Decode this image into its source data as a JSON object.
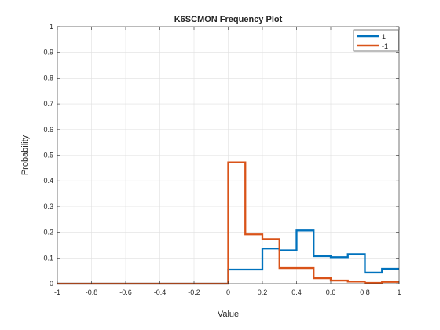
{
  "chart_data": {
    "type": "line",
    "title": "K6SCMON Frequency Plot",
    "xlabel": "Value",
    "ylabel": "Probability",
    "xlim": [
      -1,
      1
    ],
    "ylim": [
      0,
      1
    ],
    "x_ticks": [
      "-1",
      "-0.8",
      "-0.6",
      "-0.4",
      "-0.2",
      "0",
      "0.2",
      "0.4",
      "0.6",
      "0.8",
      "1"
    ],
    "y_ticks": [
      "0",
      "0.1",
      "0.2",
      "0.3",
      "0.4",
      "0.5",
      "0.6",
      "0.7",
      "0.8",
      "0.9",
      "1"
    ],
    "grid": true,
    "legend_position": "top-right",
    "bin_edges": [
      -1,
      -0.9,
      -0.8,
      -0.7,
      -0.6,
      -0.5,
      -0.4,
      -0.3,
      -0.2,
      -0.1,
      0,
      0.1,
      0.2,
      0.3,
      0.4,
      0.5,
      0.6,
      0.7,
      0.8,
      0.9,
      1
    ],
    "series": [
      {
        "name": "1",
        "color": "#0072BD",
        "values": [
          0,
          0,
          0,
          0,
          0,
          0,
          0,
          0,
          0,
          0,
          0.055,
          0.055,
          0.137,
          0.13,
          0.207,
          0.107,
          0.103,
          0.115,
          0.043,
          0.058
        ]
      },
      {
        "name": "-1",
        "color": "#D95319",
        "values": [
          0,
          0,
          0,
          0,
          0,
          0,
          0,
          0,
          0,
          0,
          0.472,
          0.192,
          0.173,
          0.061,
          0.061,
          0.021,
          0.012,
          0.008,
          0.003,
          0.007
        ]
      }
    ]
  }
}
